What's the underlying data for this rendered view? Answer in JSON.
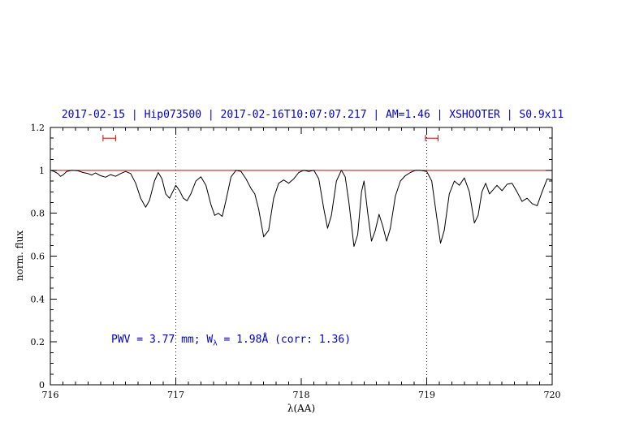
{
  "header": {
    "title": "2017-02-15 | Hip073500 | 2017-02-16T10:07:07.217 | AM=1.46 | XSHOOTER | S0.9x11"
  },
  "annotation": {
    "prefix": "PWV = 3.77 mm; W",
    "sub": "λ",
    "suffix": " = 1.98Å (corr: 1.36)"
  },
  "colors": {
    "accent_blue": "#0000cd",
    "line_red": "#cc0000",
    "curve_black": "#000000"
  },
  "chart_data": {
    "type": "line",
    "title": "2017-02-15 | Hip073500 | 2017-02-16T10:07:07.217 | AM=1.46 | XSHOOTER | S0.9x11",
    "xlabel": "λ(AA)",
    "ylabel": "norm. flux",
    "xlim": [
      716,
      720
    ],
    "ylim": [
      0,
      1.2
    ],
    "xticks": [
      716,
      717,
      718,
      719,
      720
    ],
    "xtick_labels": [
      "716",
      "717",
      "718",
      "719",
      "720"
    ],
    "yticks": [
      0,
      0.2,
      0.4,
      0.6,
      0.8,
      1,
      1.2
    ],
    "ytick_labels": [
      "0",
      "0.2",
      "0.4",
      "0.6",
      "0.8",
      "1",
      "1.2"
    ],
    "x_minor_step": 0.1,
    "y_minor_step": 0.05,
    "grid": "dotted vertical lines at marked wavelengths only",
    "legend": "none",
    "reference_line_y": 1.0,
    "dotted_lines_x": [
      717,
      719
    ],
    "band_markers": [
      {
        "x": 716.47,
        "halfwidth": 0.05,
        "y": 1.15
      },
      {
        "x": 719.04,
        "halfwidth": 0.05,
        "y": 1.15
      }
    ],
    "series": [
      {
        "name": "normalized telluric spectrum",
        "x": [
          716.0,
          716.03,
          716.06,
          716.08,
          716.1,
          716.13,
          716.17,
          716.22,
          716.26,
          716.3,
          716.33,
          716.36,
          716.4,
          716.44,
          716.48,
          716.52,
          716.56,
          716.6,
          716.64,
          716.68,
          716.72,
          716.76,
          716.79,
          716.83,
          716.86,
          716.89,
          716.92,
          716.95,
          716.98,
          717.0,
          717.03,
          717.06,
          717.09,
          717.12,
          717.16,
          717.2,
          717.24,
          717.28,
          717.31,
          717.34,
          717.37,
          717.4,
          717.44,
          717.48,
          717.52,
          717.56,
          717.6,
          717.63,
          717.66,
          717.7,
          717.74,
          717.78,
          717.82,
          717.86,
          717.9,
          717.94,
          717.98,
          718.02,
          718.06,
          718.1,
          718.14,
          718.18,
          718.21,
          718.24,
          718.28,
          718.32,
          718.35,
          718.38,
          718.42,
          718.45,
          718.48,
          718.5,
          718.53,
          718.56,
          718.59,
          718.62,
          718.65,
          718.68,
          718.71,
          718.75,
          718.79,
          718.83,
          718.87,
          718.91,
          718.95,
          719.0,
          719.04,
          719.08,
          719.11,
          719.14,
          719.18,
          719.22,
          719.26,
          719.3,
          719.34,
          719.38,
          719.41,
          719.44,
          719.47,
          719.5,
          719.53,
          719.56,
          719.6,
          719.64,
          719.68,
          719.72,
          719.76,
          719.8,
          719.84,
          719.88,
          719.92,
          719.96,
          720.0
        ],
        "y": [
          1.0,
          0.995,
          0.985,
          0.972,
          0.978,
          0.995,
          1.0,
          0.998,
          0.99,
          0.985,
          0.978,
          0.988,
          0.975,
          0.968,
          0.98,
          0.972,
          0.985,
          0.995,
          0.985,
          0.94,
          0.87,
          0.828,
          0.86,
          0.95,
          0.99,
          0.96,
          0.89,
          0.87,
          0.905,
          0.93,
          0.905,
          0.87,
          0.858,
          0.89,
          0.95,
          0.97,
          0.93,
          0.84,
          0.79,
          0.8,
          0.785,
          0.86,
          0.97,
          1.0,
          0.995,
          0.96,
          0.915,
          0.89,
          0.82,
          0.69,
          0.72,
          0.87,
          0.94,
          0.955,
          0.94,
          0.96,
          0.99,
          1.0,
          0.995,
          1.0,
          0.96,
          0.82,
          0.73,
          0.79,
          0.95,
          1.0,
          0.97,
          0.85,
          0.645,
          0.7,
          0.9,
          0.95,
          0.8,
          0.67,
          0.72,
          0.795,
          0.74,
          0.67,
          0.73,
          0.88,
          0.95,
          0.975,
          0.99,
          1.0,
          1.0,
          0.995,
          0.95,
          0.78,
          0.66,
          0.72,
          0.89,
          0.95,
          0.93,
          0.965,
          0.9,
          0.755,
          0.79,
          0.9,
          0.94,
          0.89,
          0.91,
          0.93,
          0.905,
          0.935,
          0.94,
          0.9,
          0.855,
          0.87,
          0.845,
          0.835,
          0.9,
          0.96,
          0.955
        ]
      }
    ]
  }
}
